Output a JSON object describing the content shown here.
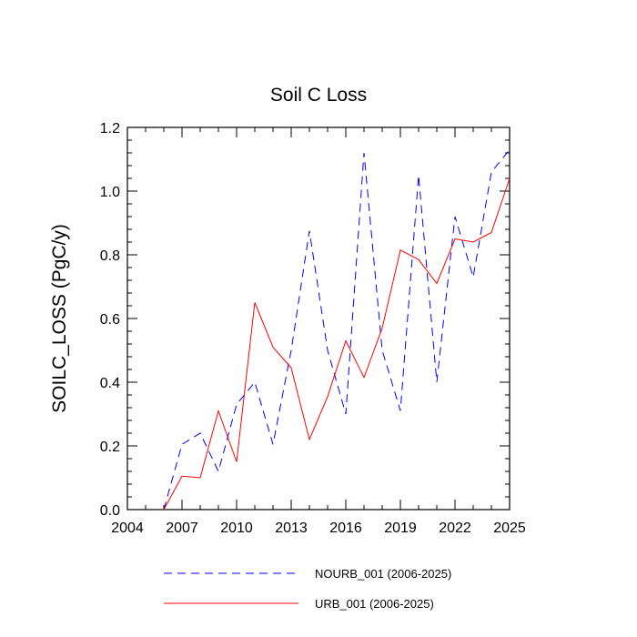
{
  "chart_data": {
    "type": "line",
    "title": "Soil C Loss",
    "xlabel": "",
    "ylabel": "SOILC_LOSS  (PgC/y)",
    "xlim": [
      2004,
      2025
    ],
    "ylim": [
      0,
      1.2
    ],
    "xticks": [
      2004,
      2007,
      2010,
      2013,
      2016,
      2019,
      2022,
      2025
    ],
    "xtick_labels": [
      "2004",
      "2007",
      "2010",
      "2013",
      "2016",
      "2019",
      "2022",
      "2025"
    ],
    "yticks": [
      0,
      0.2,
      0.4,
      0.6,
      0.8,
      1.0,
      1.2
    ],
    "ytick_labels": [
      "0.0",
      "0.2",
      "0.4",
      "0.6",
      "0.8",
      "1.0",
      "1.2"
    ],
    "grid": false,
    "legend_position": "bottom",
    "x": [
      2006,
      2007,
      2008,
      2009,
      2010,
      2011,
      2012,
      2013,
      2014,
      2015,
      2016,
      2017,
      2018,
      2019,
      2020,
      2021,
      2022,
      2023,
      2024,
      2025
    ],
    "series": [
      {
        "name": "NOURB_001 (2006-2025)",
        "color": "#0000ff",
        "style": "dashed",
        "values": [
          0.0,
          0.205,
          0.24,
          0.12,
          0.33,
          0.4,
          0.205,
          0.5,
          0.875,
          0.5,
          0.3,
          1.12,
          0.5,
          0.31,
          1.05,
          0.4,
          0.92,
          0.73,
          1.06,
          1.13
        ]
      },
      {
        "name": "URB_001 (2006-2025)",
        "color": "#ff0000",
        "style": "solid",
        "values": [
          0.0,
          0.105,
          0.1,
          0.31,
          0.15,
          0.65,
          0.51,
          0.445,
          0.22,
          0.355,
          0.53,
          0.415,
          0.57,
          0.815,
          0.785,
          0.71,
          0.85,
          0.84,
          0.87,
          1.04
        ]
      }
    ]
  }
}
